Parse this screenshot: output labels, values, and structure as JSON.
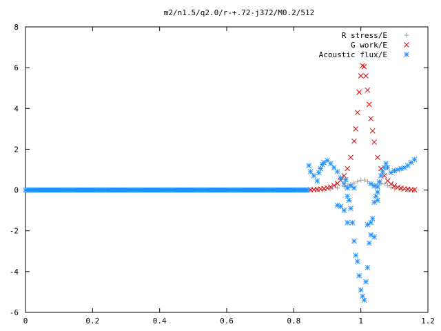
{
  "chart_data": {
    "type": "scatter",
    "title": "m2/n1.5/q2.0/r-+.72-j372/M0.2/512",
    "xlabel": "",
    "ylabel": "",
    "xlim": [
      0,
      1.2
    ],
    "ylim": [
      -6,
      8
    ],
    "xticks": [
      0,
      0.2,
      0.4,
      0.6,
      0.8,
      1,
      1.2
    ],
    "xtick_labels": [
      "0",
      "0.2",
      "0.4",
      "0.6",
      "0.8",
      "1",
      "1.2"
    ],
    "yticks": [
      -6,
      -4,
      -2,
      0,
      2,
      4,
      6,
      8
    ],
    "ytick_labels": [
      "-6",
      "-4",
      "-2",
      "0",
      "2",
      "4",
      "6",
      "8"
    ],
    "grid": false,
    "legend_position": "top-right",
    "series": [
      {
        "name": "R stress/E",
        "marker": "plus",
        "color": "#a0a0a0",
        "points": [
          [
            0.0,
            0
          ],
          [
            0.1,
            0
          ],
          [
            0.2,
            0
          ],
          [
            0.3,
            0
          ],
          [
            0.4,
            0
          ],
          [
            0.5,
            0
          ],
          [
            0.6,
            0
          ],
          [
            0.7,
            0
          ],
          [
            0.8,
            0
          ],
          [
            0.84,
            0
          ],
          [
            0.85,
            0.01
          ],
          [
            0.87,
            0.02
          ],
          [
            0.89,
            0.03
          ],
          [
            0.91,
            0.06
          ],
          [
            0.93,
            0.1
          ],
          [
            0.95,
            0.17
          ],
          [
            0.96,
            0.22
          ],
          [
            0.97,
            0.28
          ],
          [
            0.98,
            0.35
          ],
          [
            0.99,
            0.42
          ],
          [
            1.0,
            0.48
          ],
          [
            1.01,
            0.49
          ],
          [
            1.02,
            0.42
          ],
          [
            1.03,
            0.33
          ],
          [
            1.04,
            0.24
          ],
          [
            1.045,
            0.2
          ],
          [
            1.05,
            0.26
          ],
          [
            1.06,
            0.33
          ],
          [
            1.07,
            0.3
          ],
          [
            1.08,
            0.22
          ],
          [
            1.09,
            0.14
          ],
          [
            1.1,
            0.08
          ],
          [
            1.12,
            0.04
          ],
          [
            1.14,
            0.01
          ],
          [
            1.16,
            0.0
          ]
        ]
      },
      {
        "name": "G work/E",
        "marker": "cross",
        "color": "#e00000",
        "points": [
          [
            0.84,
            0.0
          ],
          [
            0.85,
            0.01
          ],
          [
            0.86,
            0.02
          ],
          [
            0.87,
            0.03
          ],
          [
            0.88,
            0.05
          ],
          [
            0.89,
            0.07
          ],
          [
            0.9,
            0.1
          ],
          [
            0.91,
            0.15
          ],
          [
            0.92,
            0.22
          ],
          [
            0.93,
            0.32
          ],
          [
            0.94,
            0.48
          ],
          [
            0.95,
            0.7
          ],
          [
            0.96,
            1.05
          ],
          [
            0.97,
            1.6
          ],
          [
            0.98,
            2.4
          ],
          [
            0.985,
            3.0
          ],
          [
            0.99,
            3.8
          ],
          [
            0.995,
            4.8
          ],
          [
            1.0,
            5.6
          ],
          [
            1.005,
            6.1
          ],
          [
            1.01,
            6.05
          ],
          [
            1.015,
            5.6
          ],
          [
            1.02,
            4.9
          ],
          [
            1.025,
            4.2
          ],
          [
            1.03,
            3.5
          ],
          [
            1.035,
            2.9
          ],
          [
            1.04,
            2.35
          ],
          [
            1.05,
            1.6
          ],
          [
            1.06,
            1.05
          ],
          [
            1.07,
            0.7
          ],
          [
            1.08,
            0.45
          ],
          [
            1.09,
            0.3
          ],
          [
            1.1,
            0.2
          ],
          [
            1.11,
            0.13
          ],
          [
            1.12,
            0.09
          ],
          [
            1.13,
            0.06
          ],
          [
            1.14,
            0.04
          ],
          [
            1.15,
            0.02
          ],
          [
            1.16,
            0.01
          ]
        ]
      },
      {
        "name": "Acoustic flux/E",
        "marker": "star",
        "color": "#1e90ff",
        "points": [
          [
            0.0,
            0
          ],
          [
            0.05,
            0
          ],
          [
            0.1,
            0
          ],
          [
            0.15,
            0
          ],
          [
            0.2,
            0
          ],
          [
            0.25,
            0
          ],
          [
            0.3,
            0
          ],
          [
            0.35,
            0
          ],
          [
            0.4,
            0
          ],
          [
            0.45,
            0
          ],
          [
            0.5,
            0
          ],
          [
            0.55,
            0
          ],
          [
            0.6,
            0
          ],
          [
            0.65,
            0
          ],
          [
            0.7,
            0
          ],
          [
            0.75,
            0
          ],
          [
            0.8,
            0
          ],
          [
            0.84,
            0
          ],
          [
            0.845,
            1.2
          ],
          [
            0.85,
            0.9
          ],
          [
            0.86,
            0.7
          ],
          [
            0.87,
            0.45
          ],
          [
            0.875,
            0.85
          ],
          [
            0.88,
            1.05
          ],
          [
            0.885,
            1.25
          ],
          [
            0.89,
            1.35
          ],
          [
            0.9,
            1.45
          ],
          [
            0.91,
            1.3
          ],
          [
            0.92,
            1.1
          ],
          [
            0.93,
            0.9
          ],
          [
            0.94,
            0.6
          ],
          [
            0.95,
            0.3
          ],
          [
            0.955,
            0.5
          ],
          [
            0.96,
            -0.3
          ],
          [
            0.965,
            -0.5
          ],
          [
            0.97,
            -0.9
          ],
          [
            0.975,
            -1.6
          ],
          [
            0.98,
            -2.5
          ],
          [
            0.985,
            -3.2
          ],
          [
            0.99,
            -3.5
          ],
          [
            0.995,
            -4.2
          ],
          [
            1.0,
            -4.9
          ],
          [
            1.005,
            -5.2
          ],
          [
            1.01,
            -5.4
          ],
          [
            1.015,
            -4.5
          ],
          [
            1.02,
            -3.8
          ],
          [
            1.025,
            -2.6
          ],
          [
            1.03,
            -1.6
          ],
          [
            1.035,
            -1.4
          ],
          [
            1.04,
            -0.6
          ],
          [
            1.045,
            -0.3
          ],
          [
            1.05,
            0.15
          ],
          [
            1.055,
            0.4
          ],
          [
            1.06,
            0.7
          ],
          [
            1.065,
            0.9
          ],
          [
            1.07,
            1.1
          ],
          [
            1.075,
            1.3
          ],
          [
            1.08,
            1.1
          ],
          [
            1.09,
            0.85
          ],
          [
            1.1,
            0.95
          ],
          [
            1.11,
            1.0
          ],
          [
            1.12,
            1.05
          ],
          [
            1.13,
            1.1
          ],
          [
            1.14,
            1.2
          ],
          [
            1.15,
            1.35
          ],
          [
            1.16,
            1.5
          ],
          [
            0.96,
            0.1
          ],
          [
            0.97,
            0.2
          ],
          [
            0.98,
            0.1
          ],
          [
            1.03,
            0.3
          ],
          [
            1.04,
            0.2
          ],
          [
            1.05,
            -0.1
          ],
          [
            0.94,
            -0.8
          ],
          [
            0.93,
            -0.75
          ],
          [
            0.95,
            -1.0
          ],
          [
            0.96,
            -1.6
          ],
          [
            1.03,
            -2.2
          ],
          [
            1.04,
            -2.3
          ],
          [
            1.02,
            -1.7
          ],
          [
            1.05,
            -0.5
          ]
        ]
      }
    ]
  }
}
